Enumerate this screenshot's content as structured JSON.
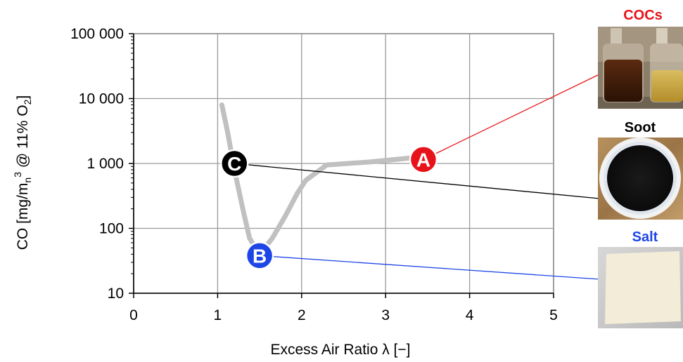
{
  "chart_data": {
    "type": "line",
    "title": "",
    "xlabel": "Excess Air Ratio  λ [−]",
    "ylabel": "CO [mg/m_n^3 @ 11% O_2]",
    "ylabel_parts": {
      "main": "CO [mg/m",
      "sub_n": "n",
      "sup_3": "3",
      "mid": " @ 11% O",
      "sub_2": "2",
      "end": "]"
    },
    "xlim": [
      0,
      5
    ],
    "ylim": [
      10,
      100000
    ],
    "yscale": "log",
    "grid": true,
    "x_ticks": [
      {
        "value": 0,
        "label": "0"
      },
      {
        "value": 1,
        "label": "1"
      },
      {
        "value": 2,
        "label": "2"
      },
      {
        "value": 3,
        "label": "3"
      },
      {
        "value": 4,
        "label": "4"
      },
      {
        "value": 5,
        "label": "5"
      }
    ],
    "y_ticks": [
      {
        "value": 10,
        "label": "10"
      },
      {
        "value": 100,
        "label": "100"
      },
      {
        "value": 1000,
        "label": "1 000"
      },
      {
        "value": 10000,
        "label": "10 000"
      },
      {
        "value": 100000,
        "label": "100 000"
      }
    ],
    "series": [
      {
        "color": "#c0c0c0",
        "x": [
          1.05,
          1.12,
          1.2,
          1.3,
          1.38,
          1.5,
          1.65,
          1.8,
          1.95,
          2.05,
          2.3,
          2.8,
          3.4
        ],
        "y": [
          8000,
          3000,
          800,
          200,
          70,
          40,
          70,
          150,
          350,
          550,
          950,
          1050,
          1250
        ]
      }
    ],
    "markers": [
      {
        "letter": "C",
        "x": 1.2,
        "y": 1000,
        "color": "#000000",
        "target": "soot"
      },
      {
        "letter": "A",
        "x": 3.45,
        "y": 1150,
        "color": "#e8131a",
        "target": "cocs"
      },
      {
        "letter": "B",
        "x": 1.5,
        "y": 38,
        "color": "#1e46e6",
        "target": "salt"
      }
    ]
  },
  "photos": [
    {
      "id": "cocs",
      "label": "COCs",
      "color": "#e8131a",
      "icon": "bottles-photo"
    },
    {
      "id": "soot",
      "label": "Soot",
      "color": "#000000",
      "icon": "soot-filter-photo"
    },
    {
      "id": "salt",
      "label": "Salt",
      "color": "#1e46e6",
      "icon": "salt-tile-photo"
    }
  ]
}
